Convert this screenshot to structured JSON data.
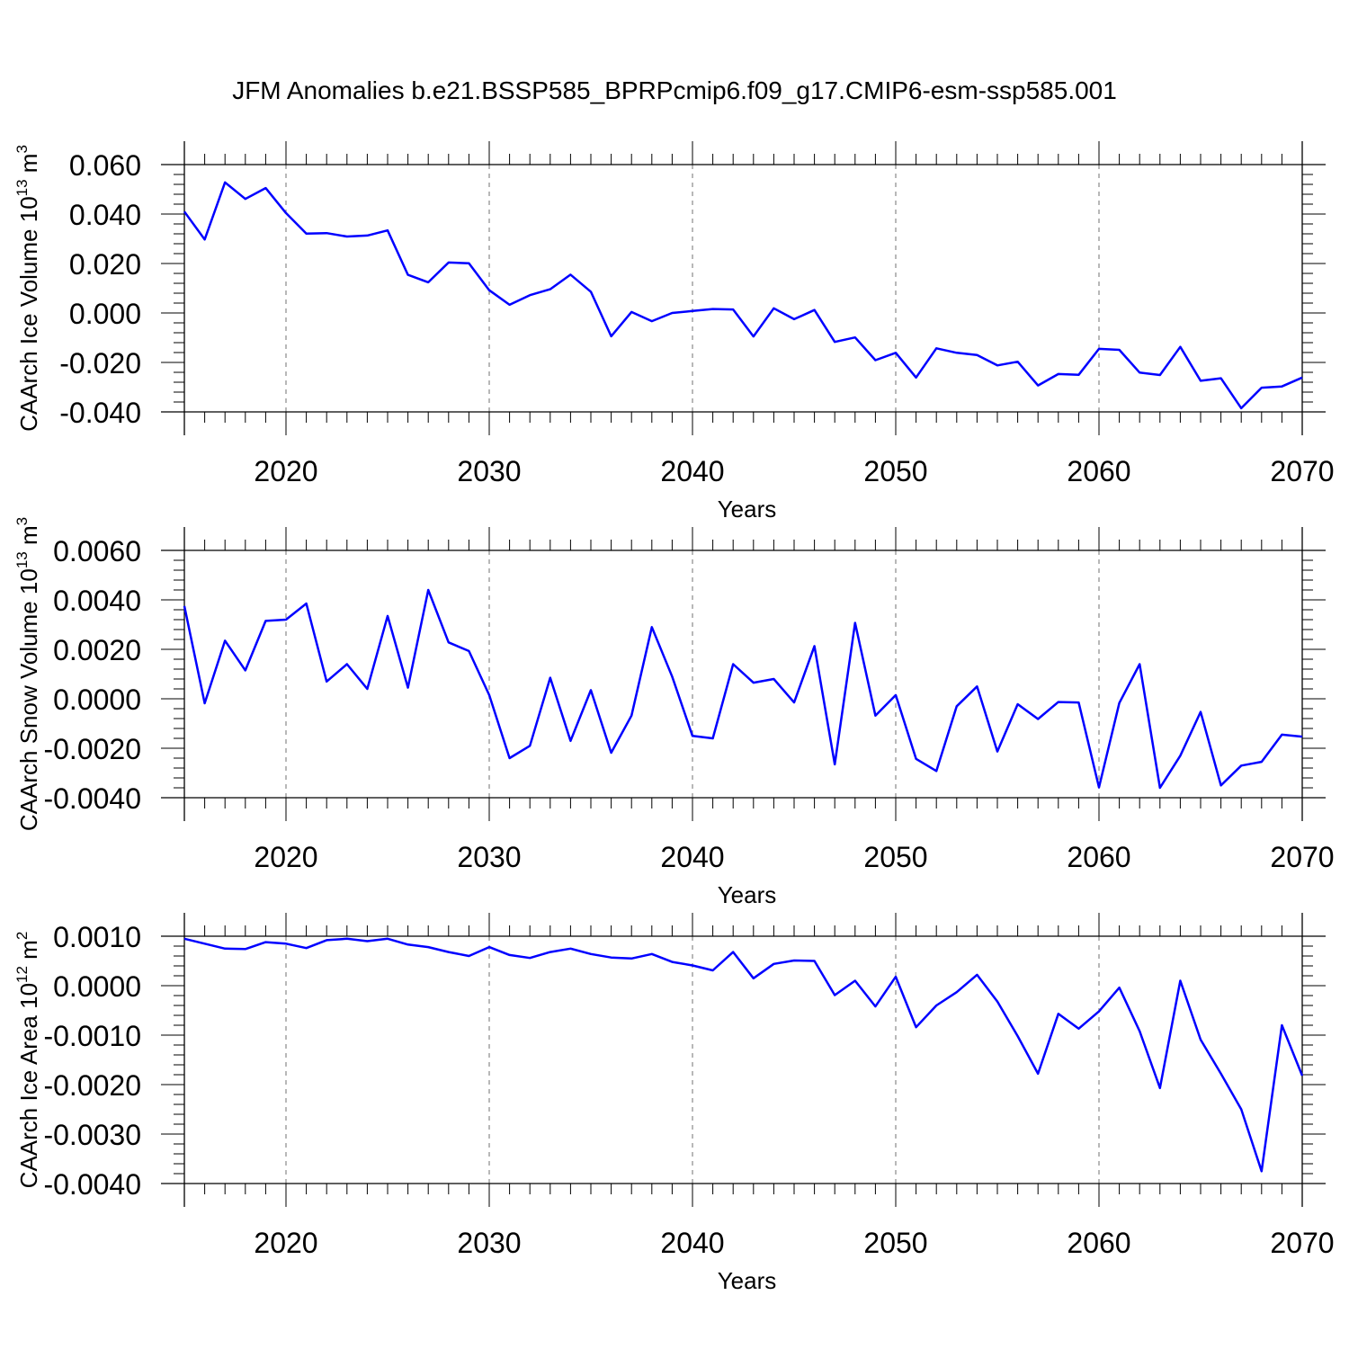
{
  "title": "JFM Anomalies b.e21.BSSP585_BPRPcmip6.f09_g17.CMIP6-esm-ssp585.001",
  "colors": {
    "line": "#0000ff",
    "axis": "#000000",
    "grid": "#888888"
  },
  "chart_data": [
    {
      "type": "line",
      "ylabel": "CAArch Ice Volume 10",
      "ylabel_exp": "13",
      "ylabel_unit": " m",
      "ylabel_unit_exp": "3",
      "xlabel": "Years",
      "xlim": [
        2015,
        2070
      ],
      "ylim": [
        -0.04,
        0.06
      ],
      "ytick_labels": [
        "0.060",
        "0.040",
        "0.020",
        "0.000",
        "-0.020",
        "-0.040"
      ],
      "ytick_values": [
        0.06,
        0.04,
        0.02,
        0.0,
        -0.02,
        -0.04
      ],
      "xtick_labels": [
        "2020",
        "2030",
        "2040",
        "2050",
        "2060",
        "2070"
      ],
      "xtick_values": [
        2020,
        2030,
        2040,
        2050,
        2060,
        2070
      ],
      "x": [
        2015,
        2016,
        2017,
        2018,
        2019,
        2020,
        2021,
        2022,
        2023,
        2024,
        2025,
        2026,
        2027,
        2028,
        2029,
        2030,
        2031,
        2032,
        2033,
        2034,
        2035,
        2036,
        2037,
        2038,
        2039,
        2040,
        2041,
        2042,
        2043,
        2044,
        2045,
        2046,
        2047,
        2048,
        2049,
        2050,
        2051,
        2052,
        2053,
        2054,
        2055,
        2056,
        2057,
        2058,
        2059,
        2060,
        2061,
        2062,
        2063,
        2064,
        2065,
        2066,
        2067,
        2068,
        2069,
        2070
      ],
      "series": [
        {
          "values": [
            0.041,
            0.0297,
            0.0528,
            0.0461,
            0.0505,
            0.0404,
            0.0321,
            0.0323,
            0.0309,
            0.0313,
            0.0334,
            0.0154,
            0.0124,
            0.0204,
            0.0201,
            0.0092,
            0.0033,
            0.0072,
            0.0096,
            0.0155,
            0.0086,
            -0.0094,
            0.0004,
            -0.0033,
            0.0,
            0.0008,
            0.0016,
            0.0014,
            -0.0095,
            0.0019,
            -0.0025,
            0.0012,
            -0.0117,
            -0.0099,
            -0.0191,
            -0.0161,
            -0.0261,
            -0.0143,
            -0.0161,
            -0.017,
            -0.0212,
            -0.0197,
            -0.0293,
            -0.0247,
            -0.025,
            -0.0145,
            -0.0149,
            -0.0241,
            -0.0251,
            -0.0137,
            -0.0274,
            -0.0264,
            -0.0385,
            -0.0302,
            -0.0297,
            -0.0261
          ]
        }
      ]
    },
    {
      "type": "line",
      "ylabel": "CAArch Snow Volume 10",
      "ylabel_exp": "13",
      "ylabel_unit": " m",
      "ylabel_unit_exp": "3",
      "xlabel": "Years",
      "xlim": [
        2015,
        2070
      ],
      "ylim": [
        -0.004,
        0.006
      ],
      "ytick_labels": [
        "0.0060",
        "0.0040",
        "0.0020",
        "0.0000",
        "-0.0020",
        "-0.0040"
      ],
      "ytick_values": [
        0.006,
        0.004,
        0.002,
        0.0,
        -0.002,
        -0.004
      ],
      "xtick_labels": [
        "2020",
        "2030",
        "2040",
        "2050",
        "2060",
        "2070"
      ],
      "xtick_values": [
        2020,
        2030,
        2040,
        2050,
        2060,
        2070
      ],
      "x": [
        2015,
        2016,
        2017,
        2018,
        2019,
        2020,
        2021,
        2022,
        2023,
        2024,
        2025,
        2026,
        2027,
        2028,
        2029,
        2030,
        2031,
        2032,
        2033,
        2034,
        2035,
        2036,
        2037,
        2038,
        2039,
        2040,
        2041,
        2042,
        2043,
        2044,
        2045,
        2046,
        2047,
        2048,
        2049,
        2050,
        2051,
        2052,
        2053,
        2054,
        2055,
        2056,
        2057,
        2058,
        2059,
        2060,
        2061,
        2062,
        2063,
        2064,
        2065,
        2066,
        2067,
        2068,
        2069,
        2070
      ],
      "series": [
        {
          "values": [
            0.00375,
            -0.00018,
            0.00235,
            0.00115,
            0.00315,
            0.0032,
            0.00385,
            0.0007,
            0.0014,
            0.0004,
            0.00335,
            0.00045,
            0.0044,
            0.00228,
            0.00193,
            0.00015,
            -0.0024,
            -0.0019,
            0.00085,
            -0.0017,
            0.00035,
            -0.00218,
            -0.00068,
            0.0029,
            0.0009,
            -0.0015,
            -0.0016,
            0.0014,
            0.00065,
            0.0008,
            -0.00015,
            0.00213,
            -0.00265,
            0.00307,
            -0.00068,
            0.00015,
            -0.00243,
            -0.00292,
            -0.0003,
            0.0005,
            -0.00213,
            -0.00022,
            -0.00082,
            -0.00013,
            -0.00015,
            -0.00358,
            -0.00017,
            0.0014,
            -0.0036,
            -0.0023,
            -0.00053,
            -0.0035,
            -0.0027,
            -0.00255,
            -0.00145,
            -0.00153
          ]
        }
      ]
    },
    {
      "type": "line",
      "ylabel": "CAArch Ice Area 10",
      "ylabel_exp": "12",
      "ylabel_unit": " m",
      "ylabel_unit_exp": "2",
      "xlabel": "Years",
      "xlim": [
        2015,
        2070
      ],
      "ylim": [
        -0.004,
        0.001
      ],
      "ytick_labels": [
        "0.0010",
        "0.0000",
        "-0.0010",
        "-0.0020",
        "-0.0030",
        "-0.0040"
      ],
      "ytick_values": [
        0.001,
        0.0,
        -0.001,
        -0.002,
        -0.003,
        -0.004
      ],
      "xtick_labels": [
        "2020",
        "2030",
        "2040",
        "2050",
        "2060",
        "2070"
      ],
      "xtick_values": [
        2020,
        2030,
        2040,
        2050,
        2060,
        2070
      ],
      "x": [
        2015,
        2016,
        2017,
        2018,
        2019,
        2020,
        2021,
        2022,
        2023,
        2024,
        2025,
        2026,
        2027,
        2028,
        2029,
        2030,
        2031,
        2032,
        2033,
        2034,
        2035,
        2036,
        2037,
        2038,
        2039,
        2040,
        2041,
        2042,
        2043,
        2044,
        2045,
        2046,
        2047,
        2048,
        2049,
        2050,
        2051,
        2052,
        2053,
        2054,
        2055,
        2056,
        2057,
        2058,
        2059,
        2060,
        2061,
        2062,
        2063,
        2064,
        2065,
        2066,
        2067,
        2068,
        2069,
        2070
      ],
      "series": [
        {
          "values": [
            0.00095,
            0.00085,
            0.00075,
            0.00074,
            0.00088,
            0.00085,
            0.00076,
            0.00092,
            0.00095,
            0.0009,
            0.00095,
            0.00083,
            0.00078,
            0.00068,
            0.0006,
            0.00078,
            0.00062,
            0.00056,
            0.00068,
            0.00075,
            0.00064,
            0.00057,
            0.00055,
            0.00064,
            0.00048,
            0.00041,
            0.00031,
            0.00068,
            0.00015,
            0.00044,
            0.00051,
            0.0005,
            -0.00019,
            0.0001,
            -0.00042,
            0.00018,
            -0.00084,
            -0.0004,
            -0.00013,
            0.00022,
            -0.00032,
            -0.00102,
            -0.00178,
            -0.00057,
            -0.00087,
            -0.00052,
            -4e-05,
            -0.00092,
            -0.00207,
            0.0001,
            -0.00109,
            -0.00178,
            -0.0025,
            -0.00375,
            -0.0008,
            -0.00182
          ]
        }
      ]
    }
  ]
}
